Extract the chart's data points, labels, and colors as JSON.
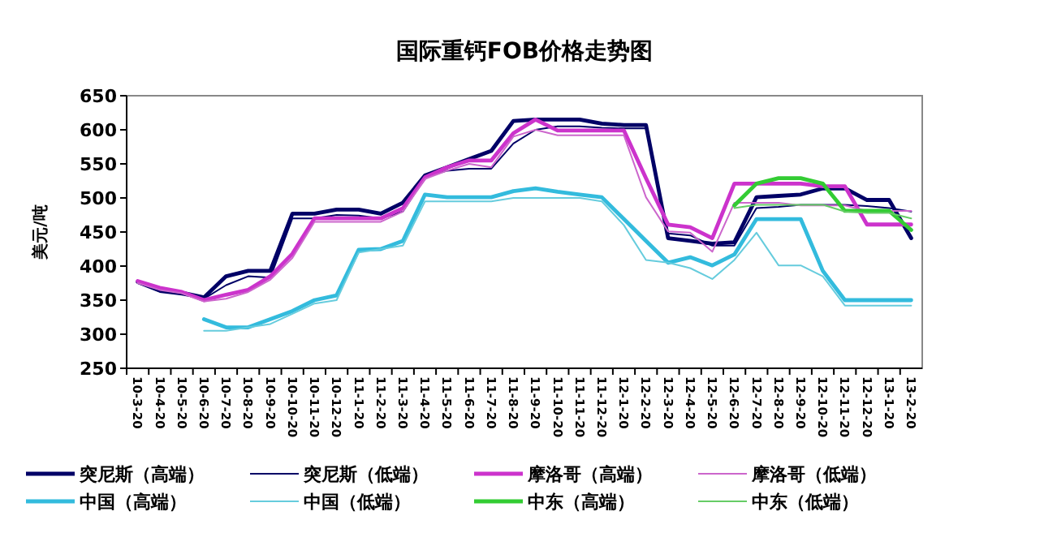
{
  "chart_data": {
    "type": "line",
    "title": "国际重钙FOB价格走势图",
    "ylabel": "美元/吨",
    "categories": [
      "10-3-20",
      "10-4-20",
      "10-5-20",
      "10-6-20",
      "10-7-20",
      "10-8-20",
      "10-9-20",
      "10-10-20",
      "10-11-20",
      "10-12-20",
      "11-1-20",
      "11-2-20",
      "11-3-20",
      "11-4-20",
      "11-5-20",
      "11-6-20",
      "11-7-20",
      "11-8-20",
      "11-9-20",
      "11-10-20",
      "11-11-20",
      "11-12-20",
      "12-1-20",
      "12-2-20",
      "12-3-20",
      "12-4-20",
      "12-5-20",
      "12-6-20",
      "12-7-20",
      "12-8-20",
      "12-9-20",
      "12-10-20",
      "12-11-20",
      "12-12-20",
      "13-1-20",
      "13-2-20"
    ],
    "ylim": [
      250,
      650
    ],
    "yticks": [
      250,
      300,
      350,
      400,
      450,
      500,
      550,
      600,
      650
    ],
    "legend": "bottom",
    "grid": false,
    "series": [
      {
        "name": "突尼斯（高端）",
        "color": "#000066",
        "values": [
          377,
          365,
          361,
          354,
          385,
          393,
          393,
          477,
          477,
          483,
          483,
          477,
          493,
          533,
          545,
          557,
          569,
          613,
          615,
          615,
          615,
          609,
          607,
          607,
          441,
          437,
          433,
          435,
          501,
          503,
          505,
          514,
          514,
          497,
          497,
          441
        ]
      },
      {
        "name": "突尼斯（低端）",
        "color": "#000066",
        "values": [
          375,
          362,
          358,
          352,
          372,
          385,
          383,
          470,
          470,
          475,
          474,
          470,
          480,
          530,
          540,
          543,
          543,
          580,
          600,
          605,
          605,
          603,
          602,
          602,
          448,
          445,
          430,
          430,
          485,
          487,
          490,
          490,
          490,
          488,
          485,
          480
        ]
      },
      {
        "name": "摩洛哥（高端）",
        "color": "#cc33cc",
        "values": [
          378,
          368,
          362,
          350,
          358,
          365,
          385,
          418,
          470,
          470,
          470,
          470,
          485,
          530,
          545,
          555,
          555,
          595,
          615,
          599,
          599,
          599,
          599,
          529,
          461,
          457,
          441,
          521,
          521,
          521,
          521,
          517,
          517,
          461,
          461,
          461
        ]
      },
      {
        "name": "摩洛哥（低端）",
        "color": "#cc66cc",
        "values": [
          375,
          365,
          360,
          348,
          352,
          362,
          380,
          412,
          465,
          465,
          465,
          465,
          480,
          528,
          540,
          550,
          545,
          590,
          600,
          592,
          592,
          592,
          592,
          501,
          451,
          449,
          421,
          493,
          493,
          493,
          489,
          489,
          489,
          481,
          481,
          481
        ]
      },
      {
        "name": "中国（高端）",
        "color": "#33bbdd",
        "values": [
          null,
          null,
          null,
          322,
          310,
          310,
          322,
          334,
          350,
          357,
          424,
          425,
          437,
          505,
          501,
          501,
          501,
          510,
          514,
          509,
          505,
          501,
          469,
          437,
          405,
          413,
          401,
          417,
          469,
          469,
          469,
          393,
          350,
          350,
          350,
          350
        ]
      },
      {
        "name": "中国（低端）",
        "color": "#66ccdd",
        "values": [
          null,
          null,
          null,
          305,
          305,
          310,
          315,
          330,
          345,
          350,
          420,
          425,
          430,
          495,
          495,
          495,
          495,
          500,
          500,
          500,
          500,
          495,
          460,
          409,
          405,
          397,
          381,
          409,
          449,
          401,
          401,
          385,
          342,
          342,
          342,
          342
        ]
      },
      {
        "name": "中东（高端）",
        "color": "#33cc33",
        "values": [
          null,
          null,
          null,
          null,
          null,
          null,
          null,
          null,
          null,
          null,
          null,
          null,
          null,
          null,
          null,
          null,
          null,
          null,
          null,
          null,
          null,
          null,
          null,
          null,
          null,
          null,
          null,
          489,
          521,
          529,
          529,
          521,
          481,
          481,
          481,
          453
        ]
      },
      {
        "name": "中东（低端）",
        "color": "#66cc66",
        "values": [
          null,
          null,
          null,
          null,
          null,
          null,
          null,
          null,
          null,
          null,
          null,
          null,
          null,
          null,
          null,
          null,
          null,
          null,
          null,
          null,
          null,
          null,
          null,
          null,
          null,
          null,
          null,
          485,
          490,
          490,
          490,
          490,
          480,
          478,
          478,
          470
        ]
      }
    ]
  }
}
